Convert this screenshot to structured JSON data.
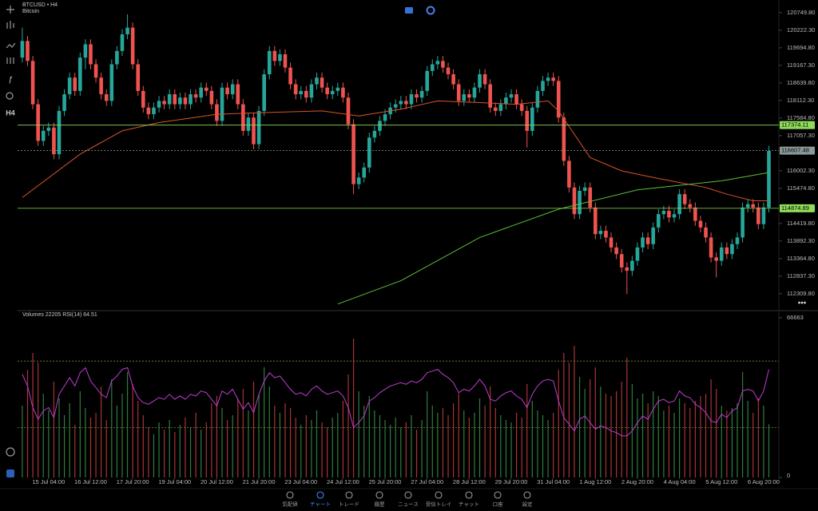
{
  "header": {
    "symbol": "BTCUSD • H4",
    "name": "Bitcoin"
  },
  "toolbar": {
    "timeframe": "H4"
  },
  "indicator_label": "Volumes 22205 RSI(14) 64.51",
  "nav": {
    "items": [
      "気配値",
      "チャート",
      "トレード",
      "履歴",
      "ニュース",
      "受信トレイ",
      "チャット",
      "口座",
      "設定"
    ],
    "active_color": "#3d8bfd"
  },
  "chart_data": {
    "type": "candlestick",
    "up_color": "#26a69a",
    "down_color": "#ef5350",
    "xlim": [
      -0.9,
      143.9
    ],
    "ylim": [
      111900,
      121130
    ],
    "yticks": [
      {
        "value": 120749.8,
        "label": "120749.80"
      },
      {
        "value": 120222.3,
        "label": "120222.30"
      },
      {
        "value": 119694.8,
        "label": "119694.80"
      },
      {
        "value": 119167.3,
        "label": "119167.30"
      },
      {
        "value": 118639.8,
        "label": "118639.80"
      },
      {
        "value": 118112.3,
        "label": "118112.30"
      },
      {
        "value": 117584.8,
        "label": "117584.80"
      },
      {
        "value": 117057.3,
        "label": "117057.30"
      },
      {
        "value": 116002.3,
        "label": "116002.30"
      },
      {
        "value": 115474.8,
        "label": "115474.80"
      },
      {
        "value": 114419.8,
        "label": "114419.80"
      },
      {
        "value": 113892.3,
        "label": "113892.30"
      },
      {
        "value": 113364.8,
        "label": "113364.80"
      },
      {
        "value": 112837.3,
        "label": "112837.30"
      },
      {
        "value": 112309.8,
        "label": "112309.80"
      }
    ],
    "xticks": [
      {
        "value": 5,
        "label": "15 Jul 04:00"
      },
      {
        "value": 13,
        "label": "16 Jul 12:00"
      },
      {
        "value": 21,
        "label": "17 Jul 20:00"
      },
      {
        "value": 29,
        "label": "19 Jul 04:00"
      },
      {
        "value": 37,
        "label": "20 Jul 12:00"
      },
      {
        "value": 45,
        "label": "21 Jul 20:00"
      },
      {
        "value": 53,
        "label": "23 Jul 04:00"
      },
      {
        "value": 61,
        "label": "24 Jul 12:00"
      },
      {
        "value": 69,
        "label": "25 Jul 20:00"
      },
      {
        "value": 77,
        "label": "27 Jul 04:00"
      },
      {
        "value": 85,
        "label": "28 Jul 12:00"
      },
      {
        "value": 93,
        "label": "29 Jul 20:00"
      },
      {
        "value": 101,
        "label": "31 Jul 04:00"
      },
      {
        "value": 109,
        "label": "1 Aug 12:00"
      },
      {
        "value": 117,
        "label": "2 Aug 20:00"
      },
      {
        "value": 125,
        "label": "4 Aug 04:00"
      },
      {
        "value": 133,
        "label": "5 Aug 12:00"
      },
      {
        "value": 141,
        "label": "6 Aug 20:00"
      }
    ],
    "open": [
      119400,
      119900,
      119300,
      118000,
      116900,
      117200,
      117300,
      116500,
      117800,
      118300,
      118800,
      118400,
      119400,
      119800,
      119200,
      118800,
      118300,
      118100,
      119200,
      119600,
      120100,
      120300,
      119200,
      118400,
      117900,
      117700,
      117900,
      118100,
      118000,
      118300,
      118000,
      118200,
      118000,
      118300,
      118200,
      118500,
      118400,
      118000,
      117500,
      118500,
      118300,
      118600,
      118000,
      117200,
      117600,
      116800,
      117800,
      118900,
      119600,
      119300,
      119500,
      119100,
      118600,
      118300,
      118400,
      118200,
      118600,
      118800,
      118500,
      118300,
      118400,
      118500,
      118200,
      117400,
      115600,
      115800,
      116100,
      117000,
      117200,
      117500,
      117700,
      117900,
      118000,
      118100,
      118000,
      118300,
      118200,
      118400,
      119000,
      119200,
      119300,
      119100,
      118900,
      118600,
      118100,
      118300,
      118200,
      118500,
      118900,
      118600,
      117900,
      117800,
      118000,
      118200,
      118300,
      118000,
      117800,
      117200,
      117900,
      118400,
      118700,
      118800,
      118700,
      117600,
      116300,
      115500,
      114700,
      115400,
      115500,
      114900,
      114100,
      114200,
      114000,
      113700,
      113500,
      113100,
      113000,
      113300,
      113700,
      114000,
      113800,
      114300,
      114700,
      114800,
      114600,
      114700,
      115300,
      115000,
      114900,
      114500,
      114300,
      114000,
      113400,
      113300,
      113700,
      113500,
      113800,
      114000,
      114900,
      115000,
      114900,
      114400,
      114900
    ],
    "high": [
      120300,
      120050,
      119450,
      118150,
      117350,
      117450,
      117450,
      117950,
      118450,
      118950,
      118950,
      119550,
      119950,
      119950,
      119350,
      118950,
      118450,
      119350,
      119750,
      120250,
      120700,
      120450,
      119350,
      118550,
      118050,
      118050,
      118250,
      118250,
      118450,
      118450,
      118350,
      118350,
      118450,
      118450,
      118650,
      118650,
      118550,
      118150,
      118650,
      118650,
      118750,
      118750,
      118150,
      117750,
      117750,
      117950,
      119050,
      119750,
      119750,
      119650,
      119650,
      119250,
      118750,
      118550,
      118550,
      118750,
      118950,
      118950,
      118650,
      118550,
      118650,
      118650,
      118350,
      117550,
      115950,
      116250,
      117150,
      117350,
      117650,
      117850,
      118050,
      118150,
      118250,
      118250,
      118450,
      118450,
      118550,
      119150,
      119350,
      119450,
      119450,
      119250,
      119050,
      118750,
      118450,
      118450,
      118650,
      119050,
      119050,
      118750,
      118050,
      118150,
      118350,
      118450,
      118450,
      118150,
      117950,
      118050,
      118550,
      118850,
      118950,
      118950,
      118850,
      117750,
      116450,
      115650,
      115550,
      115650,
      115650,
      115050,
      114350,
      114350,
      114150,
      113850,
      113650,
      113250,
      113450,
      113850,
      114150,
      114150,
      114450,
      114850,
      114950,
      114950,
      114850,
      115450,
      115450,
      115150,
      115050,
      114650,
      114450,
      114150,
      113550,
      113850,
      113850,
      113950,
      114150,
      115050,
      115150,
      115150,
      115050,
      115050,
      116750
    ],
    "low": [
      119250,
      119150,
      117850,
      116750,
      116750,
      117050,
      116350,
      116350,
      117650,
      118150,
      118250,
      118250,
      119050,
      119050,
      118650,
      118150,
      117950,
      117950,
      119050,
      119450,
      119950,
      119050,
      118250,
      117750,
      117550,
      117550,
      117750,
      117850,
      117850,
      117850,
      117850,
      117850,
      117850,
      118050,
      118050,
      118250,
      117850,
      117350,
      117350,
      118150,
      118150,
      117850,
      117050,
      117050,
      116650,
      116650,
      117650,
      118750,
      119150,
      119150,
      118950,
      118450,
      118150,
      118150,
      118050,
      118050,
      118450,
      118350,
      118150,
      118150,
      118250,
      118050,
      117250,
      115300,
      115450,
      115650,
      115950,
      116850,
      117050,
      117350,
      117550,
      117750,
      117850,
      117850,
      117850,
      118050,
      118050,
      118250,
      118850,
      119050,
      118950,
      118750,
      118450,
      117950,
      117950,
      118050,
      118050,
      118350,
      118450,
      117750,
      117650,
      117650,
      117850,
      118050,
      117850,
      117650,
      116700,
      117050,
      117750,
      118250,
      118550,
      118550,
      117450,
      116150,
      115350,
      114550,
      114550,
      115250,
      114750,
      113950,
      113950,
      113850,
      113550,
      113350,
      112950,
      112300,
      112850,
      113150,
      113550,
      113650,
      113650,
      114150,
      114550,
      114450,
      114450,
      114550,
      114850,
      114750,
      114350,
      114150,
      113850,
      113250,
      112800,
      113150,
      113350,
      113350,
      113650,
      113850,
      114750,
      114750,
      114250,
      114250,
      114750
    ],
    "close": [
      119900,
      119300,
      118000,
      116900,
      117200,
      117300,
      116500,
      117800,
      118300,
      118800,
      118400,
      119400,
      119800,
      119200,
      118800,
      118300,
      118100,
      119200,
      119600,
      120100,
      120300,
      119200,
      118400,
      117900,
      117700,
      117900,
      118100,
      118000,
      118300,
      118000,
      118200,
      118000,
      118300,
      118200,
      118500,
      118400,
      118000,
      117500,
      118500,
      118300,
      118600,
      118000,
      117200,
      117600,
      116800,
      117800,
      118900,
      119600,
      119300,
      119500,
      119100,
      118600,
      118300,
      118400,
      118200,
      118600,
      118800,
      118500,
      118300,
      118400,
      118500,
      118200,
      117400,
      115600,
      115800,
      116100,
      117000,
      117200,
      117500,
      117700,
      117900,
      118000,
      118100,
      118000,
      118300,
      118200,
      118400,
      119000,
      119200,
      119300,
      119100,
      118900,
      118600,
      118100,
      118300,
      118200,
      118500,
      118900,
      118600,
      117900,
      117800,
      118000,
      118200,
      118300,
      118000,
      117800,
      117200,
      117900,
      118400,
      118700,
      118800,
      118700,
      117600,
      116300,
      115500,
      114700,
      115400,
      115500,
      114900,
      114100,
      114200,
      114000,
      113700,
      113500,
      113100,
      113000,
      113300,
      113700,
      114000,
      113800,
      114300,
      114700,
      114800,
      114600,
      114700,
      115300,
      115000,
      114900,
      114500,
      114300,
      114000,
      113400,
      113300,
      113700,
      113500,
      113800,
      114000,
      114900,
      115000,
      114900,
      114400,
      114900,
      116600
    ],
    "lines": [
      {
        "color": "#d9532c",
        "x": [
          0,
          11,
          19,
          26,
          37,
          46,
          57,
          64,
          72,
          79,
          87,
          94,
          100,
          102,
          108,
          114,
          120,
          125,
          130,
          134,
          139,
          142
        ],
        "values": [
          115200,
          116500,
          117200,
          117450,
          117700,
          117750,
          117800,
          117650,
          117850,
          118100,
          118050,
          118000,
          118100,
          117800,
          116400,
          116000,
          115800,
          115650,
          115500,
          115300,
          115100,
          115100
        ]
      },
      {
        "color": "#5fbf3a",
        "x": [
          60,
          72,
          87,
          102,
          117,
          133,
          142
        ],
        "values": [
          112000,
          112700,
          114000,
          114850,
          115430,
          115700,
          115950
        ]
      }
    ],
    "levels": [
      {
        "value": 117374.11,
        "color": "#8fdc5a"
      },
      {
        "value": 114874.89,
        "color": "#8fdc5a"
      },
      {
        "value": 116607.48,
        "color": "#8a9a9a"
      }
    ],
    "volume": {
      "ylim": [
        0,
        66663
      ],
      "yticks": [
        0,
        66663
      ],
      "up_color": "#2f7d3c",
      "down_color": "#a83434",
      "values": [
        30000,
        45000,
        52000,
        48000,
        35000,
        28000,
        40000,
        33000,
        26000,
        31000,
        22000,
        36000,
        29000,
        25000,
        27000,
        38000,
        24000,
        41000,
        30000,
        35000,
        44000,
        39000,
        32000,
        26000,
        21000,
        18000,
        23000,
        20000,
        24000,
        19000,
        22000,
        25000,
        21000,
        27000,
        20000,
        23000,
        31000,
        34000,
        29000,
        24000,
        26000,
        33000,
        37000,
        28000,
        40000,
        35000,
        46000,
        38000,
        30000,
        27000,
        31000,
        29000,
        25000,
        22000,
        26000,
        24000,
        28000,
        23000,
        21000,
        25000,
        27000,
        32000,
        43000,
        58000,
        36000,
        30000,
        34000,
        28000,
        26000,
        24000,
        22000,
        25000,
        21000,
        23000,
        26000,
        20000,
        24000,
        36000,
        30000,
        27000,
        29000,
        26000,
        31000,
        35000,
        28000,
        25000,
        27000,
        33000,
        30000,
        38000,
        29000,
        26000,
        24000,
        23000,
        27000,
        25000,
        39000,
        32000,
        28000,
        26000,
        24000,
        27000,
        45000,
        52000,
        48000,
        55000,
        42000,
        37000,
        41000,
        46000,
        38000,
        35000,
        34000,
        36000,
        40000,
        50000,
        39000,
        33000,
        35000,
        31000,
        36000,
        34000,
        28000,
        30000,
        27000,
        33000,
        31000,
        29000,
        32000,
        34000,
        35000,
        41000,
        37000,
        30000,
        28000,
        29000,
        31000,
        44000,
        32000,
        27000,
        33000,
        30000,
        22205
      ]
    },
    "rsi": {
      "ylim": [
        0,
        96
      ],
      "levels": [
        30,
        70
      ],
      "color": "#c23bd4",
      "values": [
        62,
        55,
        42,
        35,
        40,
        42,
        36,
        50,
        55,
        60,
        55,
        63,
        66,
        58,
        54,
        50,
        48,
        58,
        61,
        65,
        66,
        55,
        48,
        45,
        44,
        46,
        48,
        47,
        50,
        47,
        49,
        47,
        50,
        49,
        52,
        51,
        47,
        43,
        52,
        50,
        53,
        47,
        41,
        45,
        39,
        50,
        58,
        63,
        60,
        61,
        57,
        53,
        50,
        51,
        49,
        53,
        55,
        52,
        50,
        51,
        52,
        49,
        42,
        30,
        33,
        37,
        46,
        48,
        51,
        53,
        55,
        56,
        57,
        56,
        58,
        57,
        59,
        63,
        64,
        65,
        62,
        60,
        57,
        51,
        53,
        52,
        55,
        59,
        55,
        47,
        46,
        49,
        51,
        52,
        49,
        47,
        42,
        50,
        55,
        58,
        59,
        58,
        46,
        36,
        32,
        28,
        35,
        37,
        33,
        29,
        31,
        30,
        28,
        27,
        25,
        25,
        28,
        33,
        37,
        35,
        41,
        46,
        47,
        45,
        46,
        52,
        49,
        48,
        44,
        42,
        39,
        34,
        33,
        38,
        36,
        40,
        42,
        52,
        53,
        52,
        46,
        52,
        65
      ]
    }
  }
}
